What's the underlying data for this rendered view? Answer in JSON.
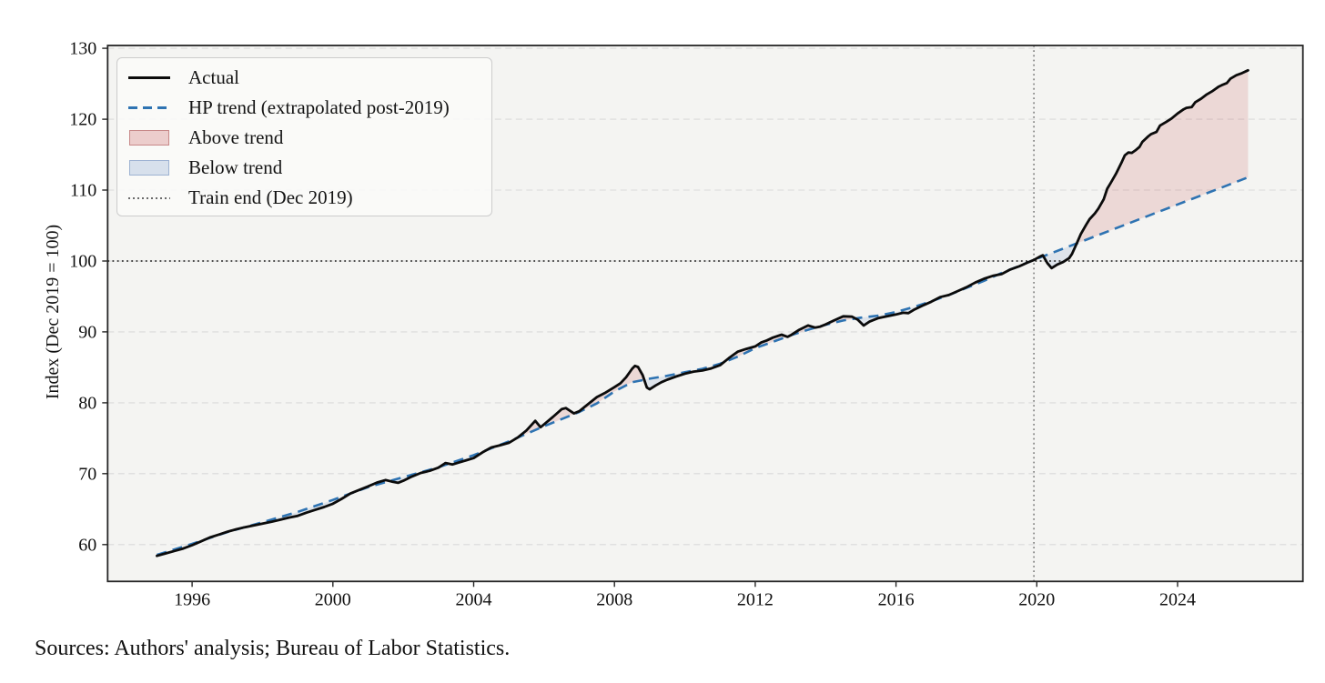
{
  "source_note": "Sources: Authors' analysis; Bureau of Labor Statistics.",
  "chart_data": {
    "type": "line",
    "title": "",
    "xlabel": "",
    "ylabel": "Index (Dec 2019 = 100)",
    "xlim": [
      1993.6,
      2027.56
    ],
    "ylim": [
      54.8,
      130.4
    ],
    "x_ticks": [
      1996,
      2000,
      2004,
      2008,
      2012,
      2016,
      2020,
      2024
    ],
    "y_ticks": [
      60,
      70,
      80,
      90,
      100,
      110,
      120,
      130
    ],
    "grid": "horizontal-dashed",
    "legend_position": "upper-left",
    "legend": [
      "Actual",
      "HP trend (extrapolated post-2019)",
      "Above trend",
      "Below trend",
      "Train end (Dec 2019)"
    ],
    "reference_lines": {
      "h_value": 100,
      "v_value": 2019.917,
      "v_label": "Train end (Dec 2019)"
    },
    "fills": [
      {
        "name": "Above trend",
        "where": "actual > trend"
      },
      {
        "name": "Below trend",
        "where": "actual < trend"
      }
    ],
    "colors": {
      "actual": "#0b0b0b",
      "trend": "#2e73b2",
      "above_fill": "rgba(200,88,88,0.18)",
      "below_fill": "rgba(110,148,198,0.16)",
      "h_line": "#141414",
      "v_line": "#6b6b6b",
      "grid": "#dadada",
      "plot_bg": "#f4f4f2",
      "spine": "#262626"
    },
    "series": [
      {
        "name": "Actual",
        "points": [
          [
            1995.0,
            58.4
          ],
          [
            1995.25,
            58.75
          ],
          [
            1995.5,
            59.1
          ],
          [
            1995.75,
            59.45
          ],
          [
            1996.0,
            59.9
          ],
          [
            1996.25,
            60.45
          ],
          [
            1996.5,
            61.0
          ],
          [
            1996.75,
            61.4
          ],
          [
            1997.0,
            61.8
          ],
          [
            1997.25,
            62.15
          ],
          [
            1997.5,
            62.45
          ],
          [
            1997.75,
            62.7
          ],
          [
            1998.0,
            62.95
          ],
          [
            1998.25,
            63.2
          ],
          [
            1998.5,
            63.5
          ],
          [
            1998.75,
            63.8
          ],
          [
            1999.0,
            64.05
          ],
          [
            1999.25,
            64.5
          ],
          [
            1999.5,
            64.9
          ],
          [
            1999.75,
            65.3
          ],
          [
            2000.0,
            65.75
          ],
          [
            2000.25,
            66.45
          ],
          [
            2000.5,
            67.2
          ],
          [
            2000.75,
            67.7
          ],
          [
            2001.0,
            68.2
          ],
          [
            2001.25,
            68.75
          ],
          [
            2001.5,
            69.1
          ],
          [
            2001.7,
            68.85
          ],
          [
            2001.85,
            68.7
          ],
          [
            2002.0,
            69.0
          ],
          [
            2002.25,
            69.6
          ],
          [
            2002.5,
            70.1
          ],
          [
            2002.75,
            70.4
          ],
          [
            2003.0,
            70.85
          ],
          [
            2003.2,
            71.5
          ],
          [
            2003.4,
            71.3
          ],
          [
            2003.6,
            71.6
          ],
          [
            2003.8,
            71.9
          ],
          [
            2004.0,
            72.2
          ],
          [
            2004.25,
            73.0
          ],
          [
            2004.5,
            73.7
          ],
          [
            2004.75,
            74.0
          ],
          [
            2005.0,
            74.35
          ],
          [
            2005.25,
            75.1
          ],
          [
            2005.5,
            76.1
          ],
          [
            2005.75,
            77.45
          ],
          [
            2005.9,
            76.55
          ],
          [
            2006.0,
            76.95
          ],
          [
            2006.25,
            78.0
          ],
          [
            2006.5,
            79.1
          ],
          [
            2006.62,
            79.25
          ],
          [
            2006.85,
            78.5
          ],
          [
            2007.0,
            78.8
          ],
          [
            2007.25,
            79.8
          ],
          [
            2007.5,
            80.8
          ],
          [
            2007.75,
            81.45
          ],
          [
            2008.0,
            82.2
          ],
          [
            2008.17,
            82.75
          ],
          [
            2008.33,
            83.6
          ],
          [
            2008.5,
            84.8
          ],
          [
            2008.58,
            85.2
          ],
          [
            2008.67,
            85.05
          ],
          [
            2008.8,
            83.9
          ],
          [
            2008.92,
            82.15
          ],
          [
            2009.0,
            81.9
          ],
          [
            2009.17,
            82.45
          ],
          [
            2009.33,
            82.9
          ],
          [
            2009.5,
            83.25
          ],
          [
            2009.75,
            83.7
          ],
          [
            2010.0,
            84.1
          ],
          [
            2010.25,
            84.4
          ],
          [
            2010.5,
            84.55
          ],
          [
            2010.75,
            84.85
          ],
          [
            2011.0,
            85.3
          ],
          [
            2011.25,
            86.3
          ],
          [
            2011.5,
            87.2
          ],
          [
            2011.75,
            87.6
          ],
          [
            2012.0,
            87.95
          ],
          [
            2012.17,
            88.5
          ],
          [
            2012.33,
            88.8
          ],
          [
            2012.5,
            89.2
          ],
          [
            2012.75,
            89.6
          ],
          [
            2012.92,
            89.3
          ],
          [
            2013.0,
            89.5
          ],
          [
            2013.25,
            90.3
          ],
          [
            2013.5,
            90.9
          ],
          [
            2013.7,
            90.6
          ],
          [
            2013.85,
            90.75
          ],
          [
            2014.0,
            91.05
          ],
          [
            2014.25,
            91.65
          ],
          [
            2014.5,
            92.2
          ],
          [
            2014.75,
            92.15
          ],
          [
            2014.92,
            91.7
          ],
          [
            2015.08,
            90.9
          ],
          [
            2015.25,
            91.45
          ],
          [
            2015.5,
            91.95
          ],
          [
            2015.75,
            92.2
          ],
          [
            2016.0,
            92.45
          ],
          [
            2016.2,
            92.7
          ],
          [
            2016.35,
            92.65
          ],
          [
            2016.5,
            93.1
          ],
          [
            2016.75,
            93.7
          ],
          [
            2017.0,
            94.25
          ],
          [
            2017.25,
            94.9
          ],
          [
            2017.5,
            95.2
          ],
          [
            2017.75,
            95.75
          ],
          [
            2018.0,
            96.3
          ],
          [
            2018.25,
            96.95
          ],
          [
            2018.5,
            97.5
          ],
          [
            2018.75,
            97.9
          ],
          [
            2019.0,
            98.15
          ],
          [
            2019.25,
            98.8
          ],
          [
            2019.5,
            99.25
          ],
          [
            2019.75,
            99.8
          ],
          [
            2019.92,
            100.15
          ],
          [
            2020.08,
            100.6
          ],
          [
            2020.17,
            100.8
          ],
          [
            2020.3,
            99.7
          ],
          [
            2020.42,
            99.0
          ],
          [
            2020.58,
            99.5
          ],
          [
            2020.75,
            99.85
          ],
          [
            2020.92,
            100.4
          ],
          [
            2021.0,
            101.0
          ],
          [
            2021.1,
            102.1
          ],
          [
            2021.17,
            102.9
          ],
          [
            2021.25,
            103.8
          ],
          [
            2021.4,
            105.1
          ],
          [
            2021.5,
            105.9
          ],
          [
            2021.65,
            106.7
          ],
          [
            2021.75,
            107.4
          ],
          [
            2021.9,
            108.7
          ],
          [
            2022.0,
            110.2
          ],
          [
            2022.1,
            111.0
          ],
          [
            2022.25,
            112.3
          ],
          [
            2022.4,
            113.8
          ],
          [
            2022.5,
            114.9
          ],
          [
            2022.6,
            115.3
          ],
          [
            2022.7,
            115.25
          ],
          [
            2022.8,
            115.6
          ],
          [
            2022.92,
            116.1
          ],
          [
            2023.0,
            116.8
          ],
          [
            2023.17,
            117.6
          ],
          [
            2023.25,
            117.9
          ],
          [
            2023.4,
            118.2
          ],
          [
            2023.5,
            119.1
          ],
          [
            2023.67,
            119.6
          ],
          [
            2023.83,
            120.1
          ],
          [
            2024.0,
            120.8
          ],
          [
            2024.17,
            121.4
          ],
          [
            2024.25,
            121.6
          ],
          [
            2024.4,
            121.7
          ],
          [
            2024.5,
            122.4
          ],
          [
            2024.67,
            122.9
          ],
          [
            2024.83,
            123.5
          ],
          [
            2025.0,
            124.0
          ],
          [
            2025.17,
            124.6
          ],
          [
            2025.25,
            124.8
          ],
          [
            2025.4,
            125.1
          ],
          [
            2025.5,
            125.7
          ],
          [
            2025.67,
            126.2
          ],
          [
            2025.83,
            126.5
          ],
          [
            2026.0,
            126.9
          ]
        ]
      },
      {
        "name": "HP trend (extrapolated post-2019)",
        "points": [
          [
            1995.0,
            58.55
          ],
          [
            1996.0,
            60.1
          ],
          [
            1997.0,
            61.75
          ],
          [
            1998.0,
            63.15
          ],
          [
            1999.0,
            64.6
          ],
          [
            2000.0,
            66.3
          ],
          [
            2001.0,
            68.1
          ],
          [
            2002.0,
            69.5
          ],
          [
            2003.0,
            70.9
          ],
          [
            2004.0,
            72.6
          ],
          [
            2005.0,
            74.55
          ],
          [
            2006.0,
            76.7
          ],
          [
            2007.0,
            78.7
          ],
          [
            2007.5,
            79.9
          ],
          [
            2008.0,
            81.6
          ],
          [
            2008.5,
            82.9
          ],
          [
            2009.0,
            83.4
          ],
          [
            2009.5,
            83.8
          ],
          [
            2010.0,
            84.3
          ],
          [
            2010.5,
            84.8
          ],
          [
            2011.0,
            85.5
          ],
          [
            2011.5,
            86.5
          ],
          [
            2012.0,
            87.7
          ],
          [
            2012.5,
            88.6
          ],
          [
            2013.0,
            89.5
          ],
          [
            2013.5,
            90.3
          ],
          [
            2014.0,
            91.0
          ],
          [
            2014.5,
            91.6
          ],
          [
            2015.0,
            92.0
          ],
          [
            2015.5,
            92.3
          ],
          [
            2016.0,
            92.8
          ],
          [
            2016.5,
            93.5
          ],
          [
            2017.0,
            94.3
          ],
          [
            2017.5,
            95.2
          ],
          [
            2018.0,
            96.2
          ],
          [
            2018.5,
            97.2
          ],
          [
            2019.0,
            98.3
          ],
          [
            2019.5,
            99.3
          ],
          [
            2019.917,
            100.15
          ],
          [
            2026.0,
            111.8
          ]
        ]
      }
    ]
  }
}
